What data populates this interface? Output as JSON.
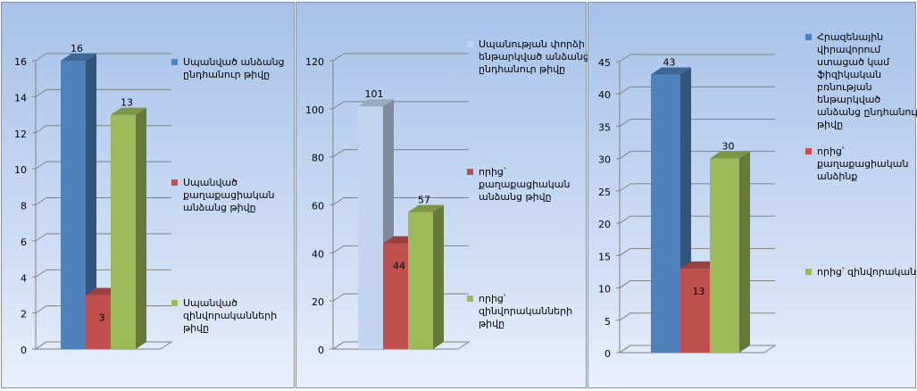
{
  "chart_data": [
    {
      "type": "bar",
      "ylim": [
        0,
        16
      ],
      "yticks": [
        0,
        2,
        4,
        6,
        8,
        10,
        12,
        14,
        16
      ],
      "grid": true,
      "series": [
        {
          "name": "Սպանված անձանց ընդհանուր թիվը",
          "color": "#4f81bd",
          "values": [
            16
          ]
        },
        {
          "name": "Սպանված քաղաքացիական անձանց թիվը",
          "color": "#c0504d",
          "values": [
            3
          ]
        },
        {
          "name": "Սպանված զինվորականների թիվը",
          "color": "#9bbb59",
          "values": [
            13
          ]
        }
      ]
    },
    {
      "type": "bar",
      "ylim": [
        0,
        120
      ],
      "yticks": [
        0,
        20,
        40,
        60,
        80,
        100,
        120
      ],
      "grid": true,
      "series": [
        {
          "name": "Սպանության փորձի ենթարկված անձանց ընդհանուր թիվը",
          "color": "#c3d4f0",
          "values": [
            101
          ]
        },
        {
          "name": "որից՝ քաղաքացիական անձանց թիվը",
          "color": "#c0504d",
          "values": [
            44
          ]
        },
        {
          "name": "որից՝ զինվորականների թիվը",
          "color": "#9bbb59",
          "values": [
            57
          ]
        }
      ]
    },
    {
      "type": "bar",
      "ylim": [
        0,
        45
      ],
      "yticks": [
        0,
        5,
        10,
        15,
        20,
        25,
        30,
        35,
        40,
        45
      ],
      "grid": true,
      "series": [
        {
          "name": "Հրազենային վիրավորում ստացած կամ ֆիզիկական բռնության ենթարկված անձանց ընդհանուր թիվը",
          "color": "#4f81bd",
          "values": [
            43
          ]
        },
        {
          "name": "որից՝ քաղաքացիական անձինք",
          "color": "#c0504d",
          "values": [
            13
          ]
        },
        {
          "name": "որից՝ զինվորական",
          "color": "#9bbb59",
          "values": [
            30
          ]
        }
      ]
    }
  ]
}
